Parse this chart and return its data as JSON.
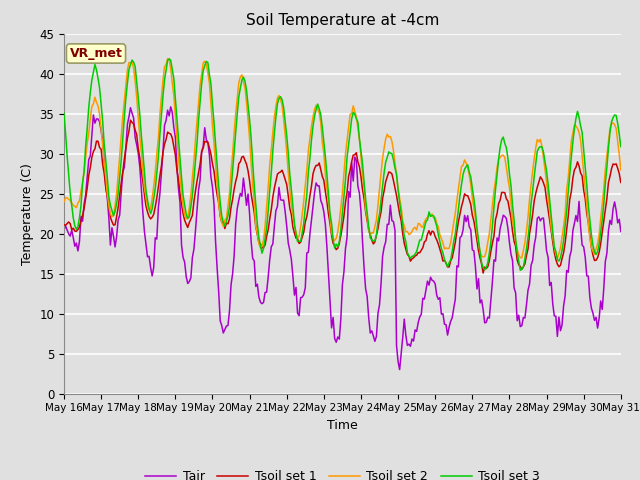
{
  "title": "Soil Temperature at -4cm",
  "xlabel": "Time",
  "ylabel": "Temperature (C)",
  "ylim": [
    0,
    45
  ],
  "xlim": [
    0,
    360
  ],
  "annotation_text": "VR_met",
  "legend_labels": [
    "Tair",
    "Tsoil set 1",
    "Tsoil set 2",
    "Tsoil set 3"
  ],
  "colors": {
    "Tair": "#aa00cc",
    "Tsoil set 1": "#cc0000",
    "Tsoil set 2": "#ff9900",
    "Tsoil set 3": "#00cc00"
  },
  "bg_color": "#e0e0e0",
  "plot_bg_color": "#e0e0e0",
  "grid_color": "#ffffff",
  "num_points": 361,
  "xtick_labels": [
    "May 16",
    "May 17",
    "May 18",
    "May 19",
    "May 20",
    "May 21",
    "May 22",
    "May 23",
    "May 24",
    "May 25",
    "May 26",
    "May 27",
    "May 28",
    "May 29",
    "May 30",
    "May 31"
  ],
  "xtick_positions": [
    0,
    24,
    48,
    72,
    96,
    120,
    144,
    168,
    192,
    216,
    240,
    264,
    288,
    312,
    336,
    360
  ],
  "figsize": [
    6.4,
    4.8
  ],
  "dpi": 100
}
